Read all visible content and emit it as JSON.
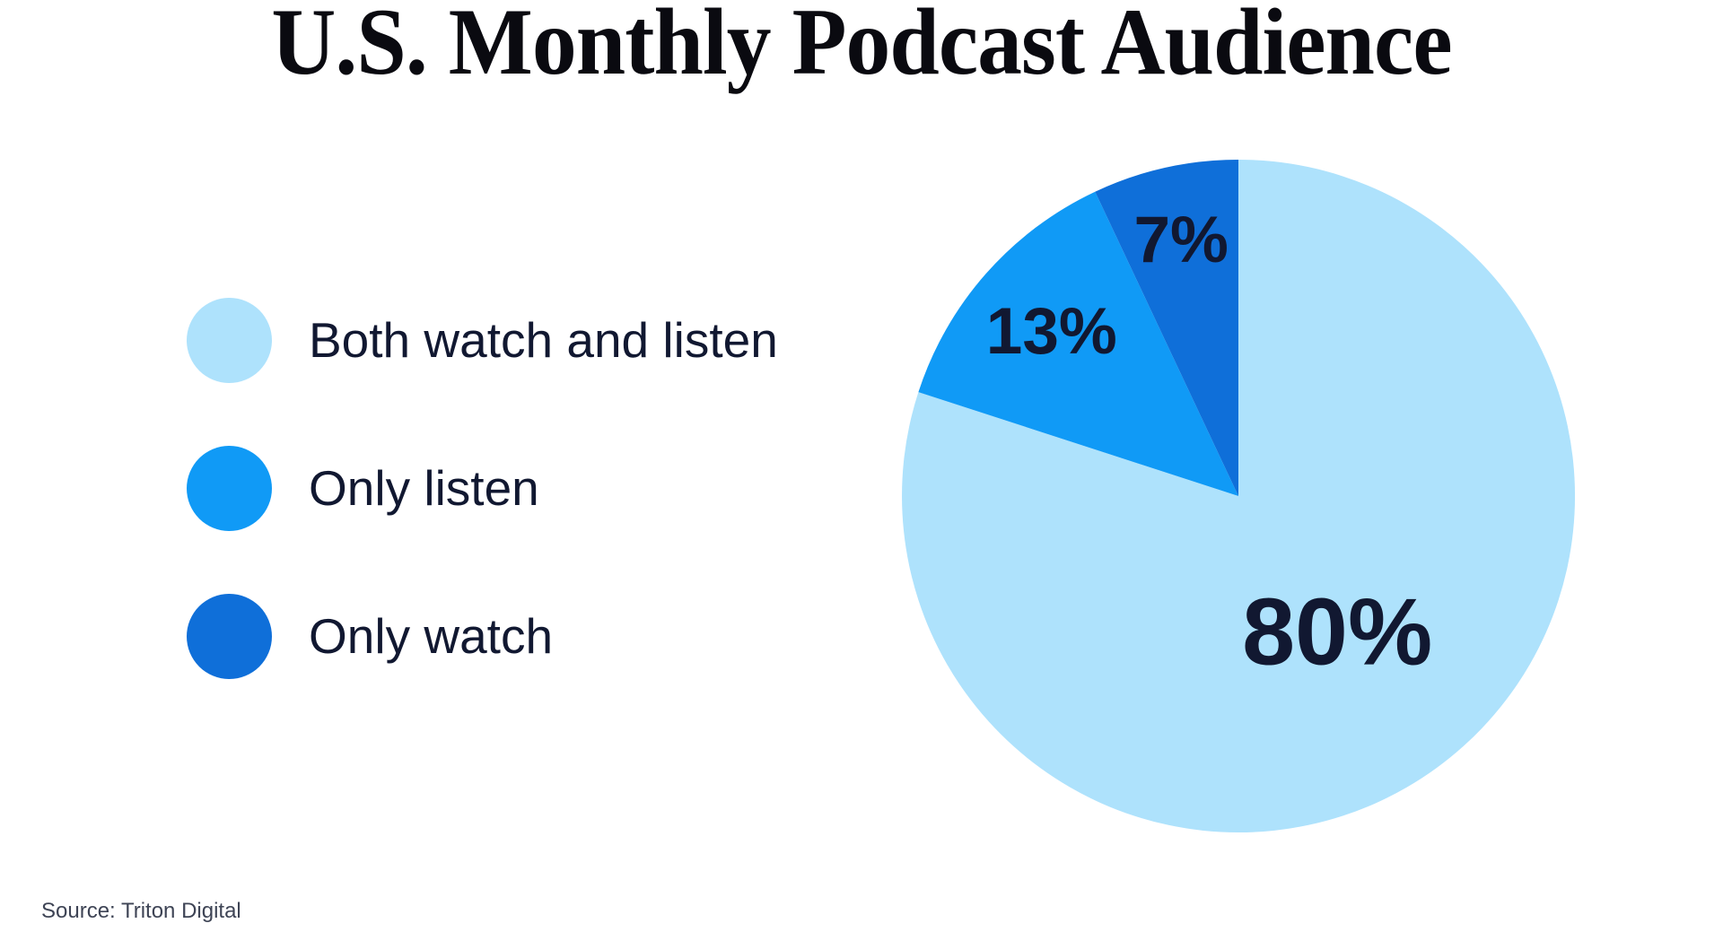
{
  "title": "U.S. Monthly Podcast Audience",
  "source": "Source: Triton Digital",
  "colors": {
    "slice_both": "#aee2fc",
    "slice_listen": "#109af6",
    "slice_watch": "#0f6fd9",
    "label_text": "#111831",
    "title_text": "#0a0a10",
    "source_text": "#3e4455",
    "background": "#ffffff"
  },
  "chart_data": {
    "type": "pie",
    "title": "U.S. Monthly Podcast Audience",
    "source": "Source: Triton Digital",
    "start_angle_deg": 0,
    "direction": "clockwise",
    "legend_position": "left",
    "slices": [
      {
        "label": "Both watch and listen",
        "value": 80,
        "display": "80%",
        "color": "#aee2fc"
      },
      {
        "label": "Only listen",
        "value": 13,
        "display": "13%",
        "color": "#109af6"
      },
      {
        "label": "Only watch",
        "value": 7,
        "display": "7%",
        "color": "#0f6fd9"
      }
    ]
  }
}
